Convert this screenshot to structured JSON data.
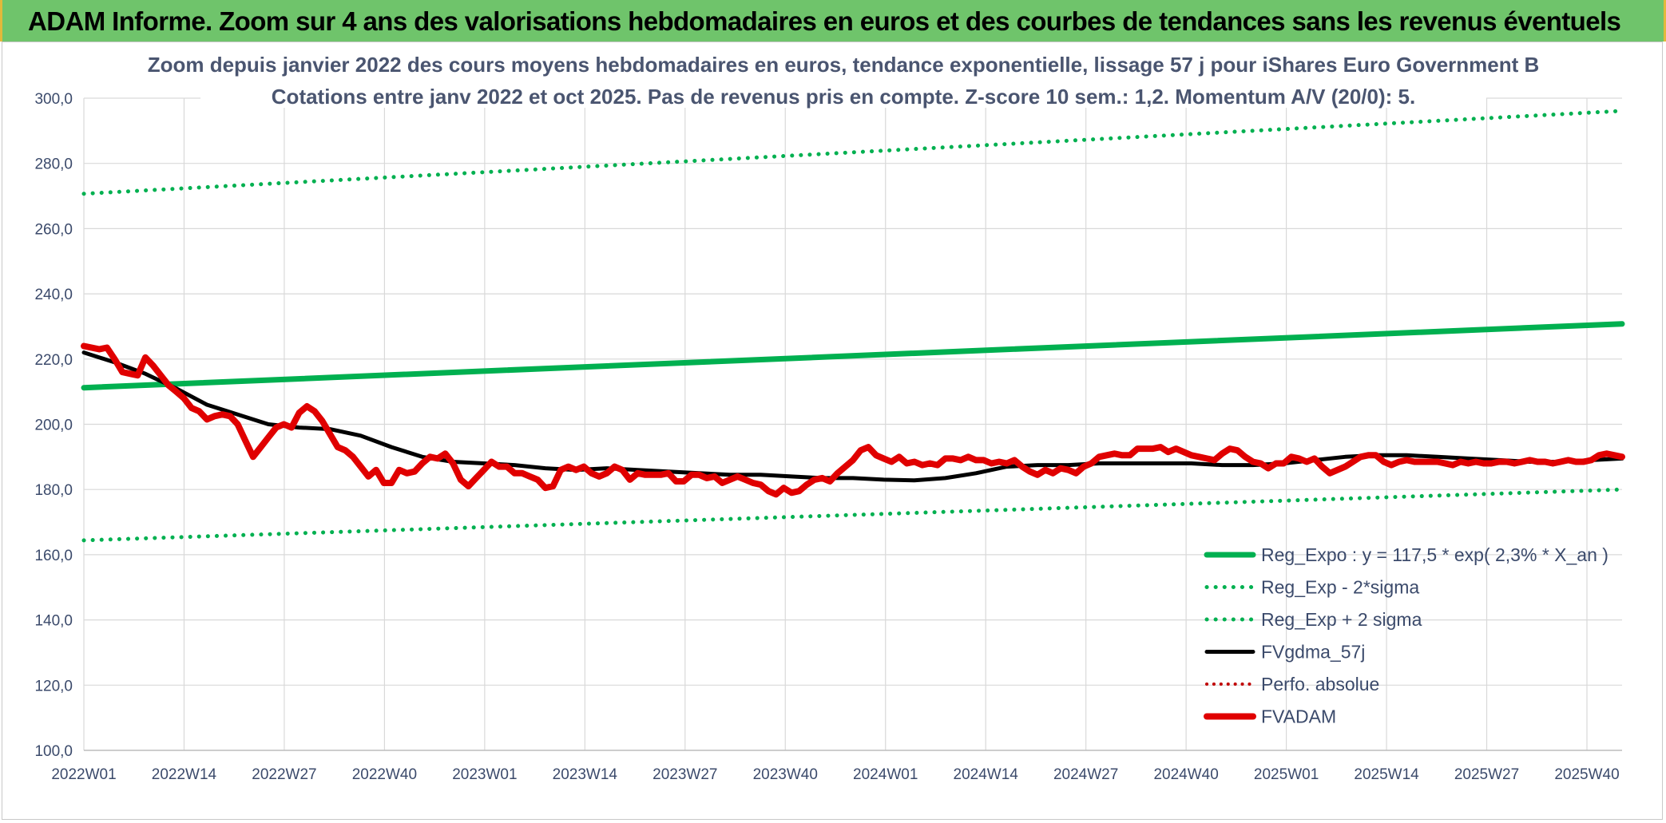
{
  "header": {
    "title": "ADAM Informe. Zoom sur 4 ans des valorisations hebdomadaires en euros et des courbes de tendances sans les revenus éventuels"
  },
  "chart_data": {
    "type": "line",
    "title": "Zoom depuis janvier 2022 des cours moyens hebdomadaires en euros, tendance exponentielle, lissage 57 j pour iShares Euro Government B",
    "subtitle": "Cotations entre janv 2022 et oct 2025. Pas de revenus pris en compte. Z-score 10 sem.: 1,2. Momentum A/V (20/0): 5.",
    "xlabel": "",
    "ylabel": "",
    "ylim": [
      100,
      300
    ],
    "yticks": [
      "100,0",
      "120,0",
      "140,0",
      "160,0",
      "180,0",
      "200,0",
      "220,0",
      "240,0",
      "260,0",
      "280,0",
      "300,0"
    ],
    "xticks": [
      "2022W01",
      "2022W14",
      "2022W27",
      "2022W40",
      "2023W01",
      "2023W14",
      "2023W27",
      "2023W40",
      "2024W01",
      "2024W14",
      "2024W27",
      "2024W40",
      "2025W01",
      "2025W14",
      "2025W27",
      "2025W40"
    ],
    "x_range_weeks": [
      0,
      200
    ],
    "grid": true,
    "legend_position": "bottom-right",
    "series": [
      {
        "name": "Reg_Expo : y = 117,5 * exp( 2,3% *  X_an )",
        "color": "#00b050",
        "style": "solid",
        "points": [
          [
            0,
            211.2
          ],
          [
            200,
            230.8
          ]
        ]
      },
      {
        "name": "Reg_Exp - 2*sigma",
        "color": "#00b050",
        "style": "dotted",
        "points": [
          [
            0,
            164.4
          ],
          [
            200,
            180.0
          ]
        ]
      },
      {
        "name": "Reg_Exp + 2 sigma",
        "color": "#00b050",
        "style": "dotted",
        "points": [
          [
            0,
            270.7
          ],
          [
            200,
            296.1
          ]
        ]
      },
      {
        "name": "FVgdma_57j",
        "color": "#000000",
        "style": "solid",
        "points": [
          [
            0,
            222
          ],
          [
            4,
            219
          ],
          [
            8,
            215.5
          ],
          [
            12,
            211
          ],
          [
            16,
            206
          ],
          [
            20,
            203
          ],
          [
            24,
            200
          ],
          [
            28,
            199
          ],
          [
            32,
            198.5
          ],
          [
            36,
            196.5
          ],
          [
            40,
            193
          ],
          [
            44,
            190
          ],
          [
            48,
            188.5
          ],
          [
            52,
            188
          ],
          [
            56,
            187.5
          ],
          [
            60,
            186.5
          ],
          [
            64,
            186
          ],
          [
            68,
            186.5
          ],
          [
            72,
            186
          ],
          [
            76,
            185.5
          ],
          [
            80,
            185
          ],
          [
            84,
            184.5
          ],
          [
            88,
            184.5
          ],
          [
            92,
            184
          ],
          [
            96,
            183.5
          ],
          [
            100,
            183.5
          ],
          [
            104,
            183
          ],
          [
            108,
            182.8
          ],
          [
            112,
            183.5
          ],
          [
            116,
            185
          ],
          [
            120,
            187
          ],
          [
            124,
            187.5
          ],
          [
            128,
            187.5
          ],
          [
            132,
            188
          ],
          [
            136,
            188
          ],
          [
            140,
            188
          ],
          [
            144,
            188
          ],
          [
            148,
            187.5
          ],
          [
            152,
            187.5
          ],
          [
            156,
            188
          ],
          [
            160,
            189
          ],
          [
            164,
            190
          ],
          [
            168,
            190.5
          ],
          [
            172,
            190.5
          ],
          [
            176,
            190
          ],
          [
            180,
            189.5
          ],
          [
            184,
            189
          ],
          [
            188,
            188.5
          ],
          [
            192,
            188.5
          ],
          [
            196,
            189
          ],
          [
            200,
            189.5
          ]
        ]
      },
      {
        "name": "Perfo. absolue",
        "color": "#c00000",
        "style": "dotted",
        "points": []
      },
      {
        "name": "FVADAM",
        "color": "#e00000",
        "style": "solid",
        "points": [
          [
            0,
            224
          ],
          [
            2,
            223
          ],
          [
            3,
            223.5
          ],
          [
            4,
            220
          ],
          [
            5,
            216
          ],
          [
            6,
            215.5
          ],
          [
            7,
            215
          ],
          [
            8,
            220.5
          ],
          [
            9,
            218
          ],
          [
            10,
            215
          ],
          [
            11,
            212
          ],
          [
            12,
            210
          ],
          [
            13,
            208
          ],
          [
            14,
            205
          ],
          [
            15,
            204
          ],
          [
            16,
            201.5
          ],
          [
            17,
            202.5
          ],
          [
            18,
            203
          ],
          [
            19,
            202.5
          ],
          [
            20,
            200
          ],
          [
            21,
            195
          ],
          [
            22,
            190
          ],
          [
            23,
            193
          ],
          [
            24,
            196
          ],
          [
            25,
            199
          ],
          [
            26,
            200
          ],
          [
            27,
            199
          ],
          [
            28,
            203.5
          ],
          [
            29,
            205.5
          ],
          [
            30,
            204
          ],
          [
            31,
            201
          ],
          [
            32,
            197
          ],
          [
            33,
            193
          ],
          [
            34,
            192
          ],
          [
            35,
            190
          ],
          [
            36,
            187
          ],
          [
            37,
            184
          ],
          [
            38,
            186
          ],
          [
            39,
            182
          ],
          [
            40,
            182
          ],
          [
            41,
            186
          ],
          [
            42,
            185
          ],
          [
            43,
            185.5
          ],
          [
            44,
            188
          ],
          [
            45,
            190
          ],
          [
            46,
            189.5
          ],
          [
            47,
            191
          ],
          [
            48,
            188
          ],
          [
            49,
            183
          ],
          [
            50,
            181
          ],
          [
            51,
            183.5
          ],
          [
            52,
            186
          ],
          [
            53,
            188.5
          ],
          [
            54,
            187
          ],
          [
            55,
            187
          ],
          [
            56,
            185
          ],
          [
            57,
            185
          ],
          [
            58,
            184
          ],
          [
            59,
            183
          ],
          [
            60,
            180.5
          ],
          [
            61,
            181
          ],
          [
            62,
            186
          ],
          [
            63,
            187
          ],
          [
            64,
            186
          ],
          [
            65,
            187
          ],
          [
            66,
            185
          ],
          [
            67,
            184
          ],
          [
            68,
            185
          ],
          [
            69,
            187
          ],
          [
            70,
            186
          ],
          [
            71,
            183
          ],
          [
            72,
            185
          ],
          [
            73,
            184.5
          ],
          [
            74,
            184.5
          ],
          [
            75,
            184.5
          ],
          [
            76,
            185
          ],
          [
            77,
            182.5
          ],
          [
            78,
            182.5
          ],
          [
            79,
            184.5
          ],
          [
            80,
            184.5
          ],
          [
            81,
            183.5
          ],
          [
            82,
            184
          ],
          [
            83,
            182
          ],
          [
            84,
            183
          ],
          [
            85,
            184
          ],
          [
            86,
            183
          ],
          [
            87,
            182
          ],
          [
            88,
            181.5
          ],
          [
            89,
            179.5
          ],
          [
            90,
            178.5
          ],
          [
            91,
            180.5
          ],
          [
            92,
            179
          ],
          [
            93,
            179.5
          ],
          [
            94,
            181.5
          ],
          [
            95,
            183
          ],
          [
            96,
            183.5
          ],
          [
            97,
            182.5
          ],
          [
            98,
            185
          ],
          [
            99,
            187
          ],
          [
            100,
            189
          ],
          [
            101,
            192
          ],
          [
            102,
            193
          ],
          [
            103,
            190.5
          ],
          [
            104,
            189.5
          ],
          [
            105,
            188.5
          ],
          [
            106,
            190
          ],
          [
            107,
            188
          ],
          [
            108,
            188.5
          ],
          [
            109,
            187.5
          ],
          [
            110,
            188
          ],
          [
            111,
            187.5
          ],
          [
            112,
            189.5
          ],
          [
            113,
            189.5
          ],
          [
            114,
            189
          ],
          [
            115,
            190
          ],
          [
            116,
            189
          ],
          [
            117,
            189
          ],
          [
            118,
            188
          ],
          [
            119,
            188.5
          ],
          [
            120,
            188
          ],
          [
            121,
            189
          ],
          [
            122,
            187
          ],
          [
            123,
            185.5
          ],
          [
            124,
            184.5
          ],
          [
            125,
            186
          ],
          [
            126,
            185
          ],
          [
            127,
            186.5
          ],
          [
            128,
            186
          ],
          [
            129,
            185
          ],
          [
            130,
            187
          ],
          [
            131,
            188
          ],
          [
            132,
            190
          ],
          [
            133,
            190.5
          ],
          [
            134,
            191
          ],
          [
            135,
            190.5
          ],
          [
            136,
            190.5
          ],
          [
            137,
            192.5
          ],
          [
            138,
            192.5
          ],
          [
            139,
            192.5
          ],
          [
            140,
            193
          ],
          [
            141,
            191.5
          ],
          [
            142,
            192.5
          ],
          [
            143,
            191.5
          ],
          [
            144,
            190.5
          ],
          [
            145,
            190
          ],
          [
            146,
            189.5
          ],
          [
            147,
            189
          ],
          [
            148,
            191
          ],
          [
            149,
            192.5
          ],
          [
            150,
            192
          ],
          [
            151,
            190
          ],
          [
            152,
            188.5
          ],
          [
            153,
            188
          ],
          [
            154,
            186.5
          ],
          [
            155,
            188
          ],
          [
            156,
            188
          ],
          [
            157,
            190
          ],
          [
            158,
            189.5
          ],
          [
            159,
            188.5
          ],
          [
            160,
            189.5
          ],
          [
            161,
            187
          ],
          [
            162,
            185
          ],
          [
            163,
            186
          ],
          [
            164,
            187
          ],
          [
            165,
            188.5
          ],
          [
            166,
            190
          ],
          [
            167,
            190.5
          ],
          [
            168,
            190.5
          ],
          [
            169,
            188.5
          ],
          [
            170,
            187.5
          ],
          [
            171,
            188.5
          ],
          [
            172,
            189
          ],
          [
            173,
            188.5
          ],
          [
            174,
            188.5
          ],
          [
            175,
            188.5
          ],
          [
            176,
            188.5
          ],
          [
            177,
            188
          ],
          [
            178,
            187.5
          ],
          [
            179,
            188.5
          ],
          [
            180,
            188
          ],
          [
            181,
            188.5
          ],
          [
            182,
            188
          ],
          [
            183,
            188
          ],
          [
            184,
            188.5
          ],
          [
            185,
            188.5
          ],
          [
            186,
            188
          ],
          [
            187,
            188.5
          ],
          [
            188,
            189
          ],
          [
            189,
            188.5
          ],
          [
            190,
            188.5
          ],
          [
            191,
            188
          ],
          [
            192,
            188.5
          ],
          [
            193,
            189
          ],
          [
            194,
            188.5
          ],
          [
            195,
            188.5
          ],
          [
            196,
            189
          ],
          [
            197,
            190.5
          ],
          [
            198,
            191
          ],
          [
            199,
            190.5
          ],
          [
            200,
            190
          ]
        ]
      }
    ]
  }
}
